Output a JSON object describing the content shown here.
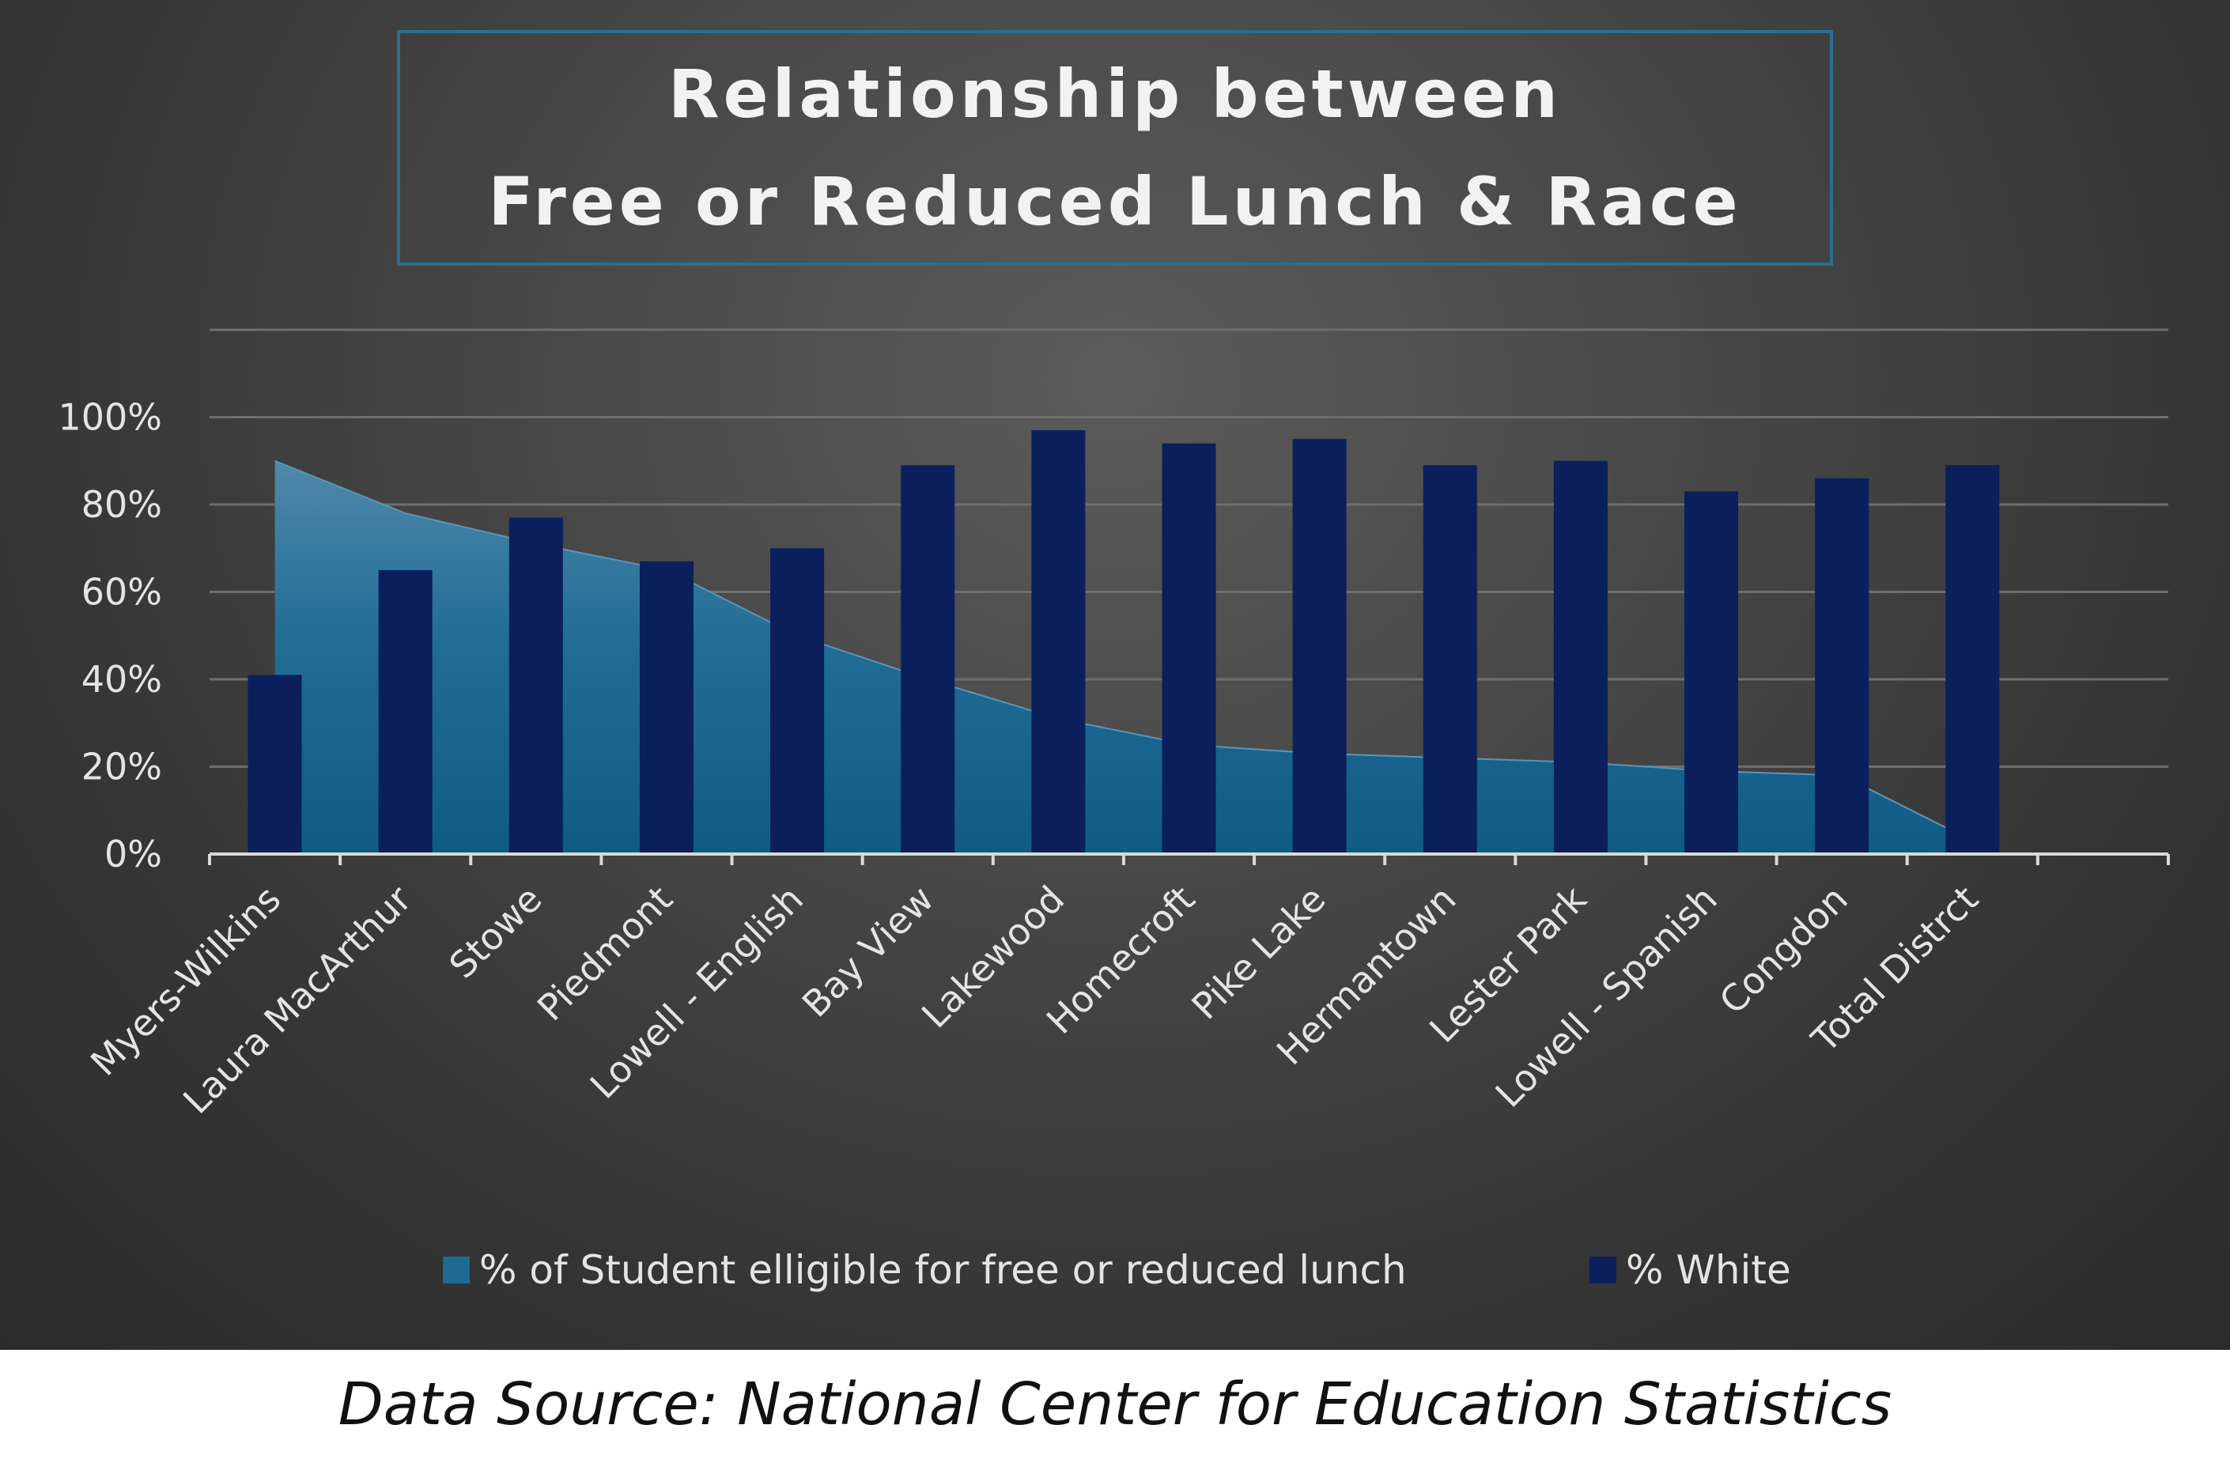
{
  "chart_data": {
    "type": "bar",
    "title": "Relationship between Free or Reduced Lunch & Race",
    "title_lines": [
      "Relationship between",
      "Free or Reduced Lunch & Race"
    ],
    "categories": [
      "Myers-Wilkins",
      "Laura MacArthur",
      "Stowe",
      "Piedmont",
      "Lowell - English",
      "Bay View",
      "Lakewood",
      "Homecroft",
      "Pike Lake",
      "Hermantown",
      "Lester Park",
      "Lowell - Spanish",
      "Congdon",
      "Total Distrct"
    ],
    "series": [
      {
        "name": "% of Student elligible for free or reduced lunch",
        "type": "area",
        "color": "#1e6a93",
        "values": [
          90,
          78,
          71,
          65,
          50,
          40,
          31,
          25,
          23,
          22,
          21,
          19,
          18,
          3
        ]
      },
      {
        "name": "% White",
        "type": "bar",
        "color": "#0a1f5c",
        "values": [
          41,
          65,
          77,
          67,
          70,
          89,
          97,
          94,
          95,
          89,
          90,
          83,
          86,
          89
        ]
      }
    ],
    "yticks": [
      "0%",
      "20%",
      "40%",
      "60%",
      "80%",
      "100%"
    ],
    "ylim": [
      0,
      120
    ],
    "xlabel": "",
    "ylabel": "",
    "grid": true,
    "legend": "bottom"
  },
  "source_note": "Data Source: National Center for Education Statistics"
}
